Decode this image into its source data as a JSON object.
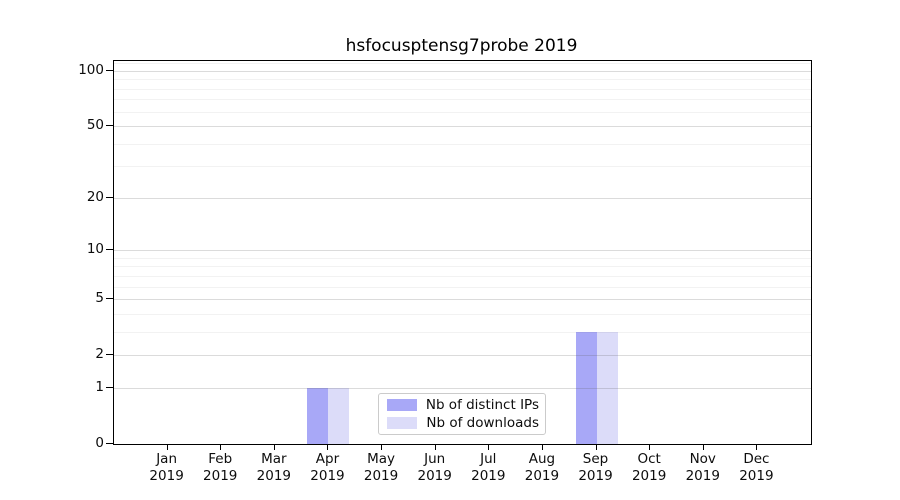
{
  "chart_data": {
    "type": "bar",
    "title": "hsfocusptensg7probe 2019",
    "categories": [
      "Jan",
      "Feb",
      "Mar",
      "Apr",
      "May",
      "Jun",
      "Jul",
      "Aug",
      "Sep",
      "Oct",
      "Nov",
      "Dec"
    ],
    "x_year_label": "2019",
    "series": [
      {
        "name": "Nb of distinct IPs",
        "color": "#a8a8f7",
        "values": [
          0,
          0,
          0,
          1,
          0,
          0,
          0,
          0,
          3,
          0,
          0,
          0
        ]
      },
      {
        "name": "Nb of downloads",
        "color": "#dcdcf9",
        "values": [
          0,
          0,
          0,
          1,
          0,
          0,
          0,
          0,
          3,
          0,
          0,
          0
        ]
      }
    ],
    "yscale": "log1p",
    "ylim": [
      0,
      113
    ],
    "y_major_ticks": [
      0,
      1,
      2,
      5,
      10,
      20,
      50,
      100
    ],
    "y_minor_ticks": [
      3,
      4,
      6,
      7,
      8,
      9,
      30,
      40,
      60,
      70,
      80,
      90,
      110
    ],
    "grid": true,
    "legend_position": "lower center",
    "colors": {
      "axis": "#000000",
      "grid_major": "#d2d2d2",
      "grid_minor": "#ededed",
      "background": "#ffffff"
    }
  }
}
